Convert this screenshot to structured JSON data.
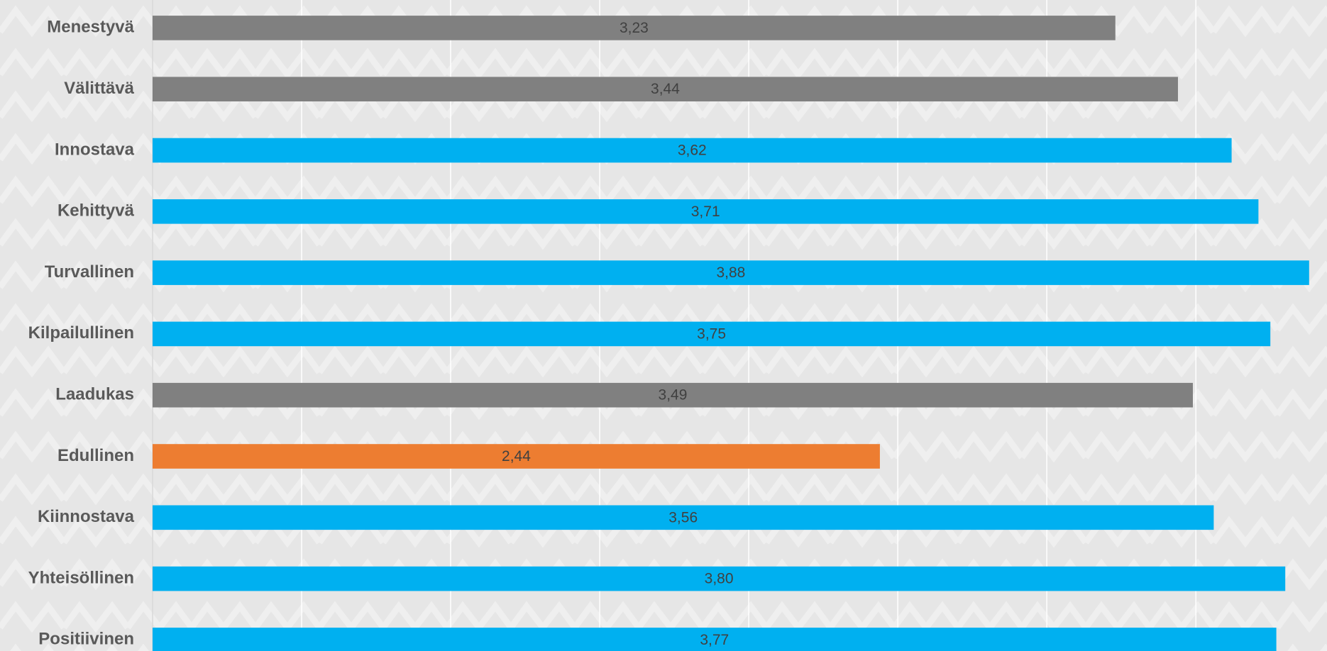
{
  "chart_data": {
    "type": "hbar",
    "categories": [
      "Menestyvä",
      "Välittävä",
      "Innostava",
      "Kehittyvä",
      "Turvallinen",
      "Kilpailullinen",
      "Laadukas",
      "Edullinen",
      "Kiinnostava",
      "Yhteisöllinen",
      "Positiivinen"
    ],
    "values": [
      3.23,
      3.44,
      3.62,
      3.71,
      3.88,
      3.75,
      3.49,
      2.44,
      3.56,
      3.8,
      3.77
    ],
    "value_labels": [
      "3,23",
      "3,44",
      "3,62",
      "3,71",
      "3,88",
      "3,75",
      "3,49",
      "2,44",
      "3,56",
      "3,80",
      "3,77"
    ],
    "colors": [
      "#808080",
      "#808080",
      "#00b0f0",
      "#00b0f0",
      "#00b0f0",
      "#00b0f0",
      "#808080",
      "#ed7d31",
      "#00b0f0",
      "#00b0f0",
      "#00b0f0"
    ],
    "xlim": [
      0,
      3.94
    ],
    "xticks": [
      0,
      0.5,
      1,
      1.5,
      2,
      2.5,
      3,
      3.5
    ],
    "grid": true
  }
}
